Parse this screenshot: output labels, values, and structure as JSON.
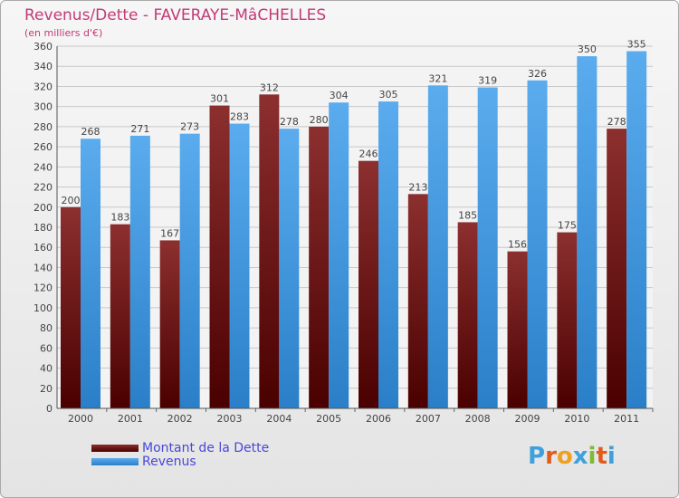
{
  "header": {
    "title": "Revenus/Dette - FAVERAYE-MâCHELLES",
    "subtitle": "(en milliers d'€)"
  },
  "chart_data": {
    "type": "bar",
    "categories": [
      "2000",
      "2001",
      "2002",
      "2003",
      "2004",
      "2005",
      "2006",
      "2007",
      "2008",
      "2009",
      "2010",
      "2011"
    ],
    "series": [
      {
        "name": "Montant de la Dette",
        "values": [
          200,
          183,
          167,
          301,
          312,
          280,
          246,
          213,
          185,
          156,
          175,
          278
        ],
        "color": "#6e1010"
      },
      {
        "name": "Revenus",
        "values": [
          268,
          271,
          273,
          283,
          278,
          304,
          305,
          321,
          319,
          326,
          350,
          355
        ],
        "color": "#4f9fe2"
      }
    ],
    "ylim": [
      0,
      360
    ],
    "yticks": [
      0,
      20,
      40,
      60,
      80,
      100,
      120,
      140,
      160,
      180,
      200,
      220,
      240,
      260,
      280,
      300,
      320,
      340,
      360
    ],
    "grid": true,
    "legend_position": "bottom-left"
  },
  "logo": {
    "letters": [
      "P",
      "r",
      "o",
      "x",
      "i",
      "t",
      "i"
    ],
    "colors": [
      "#3ea0dc",
      "#e25a1c",
      "#f0a020",
      "#3ea0dc",
      "#7cbc34",
      "#e25a1c",
      "#3ea0dc"
    ]
  }
}
